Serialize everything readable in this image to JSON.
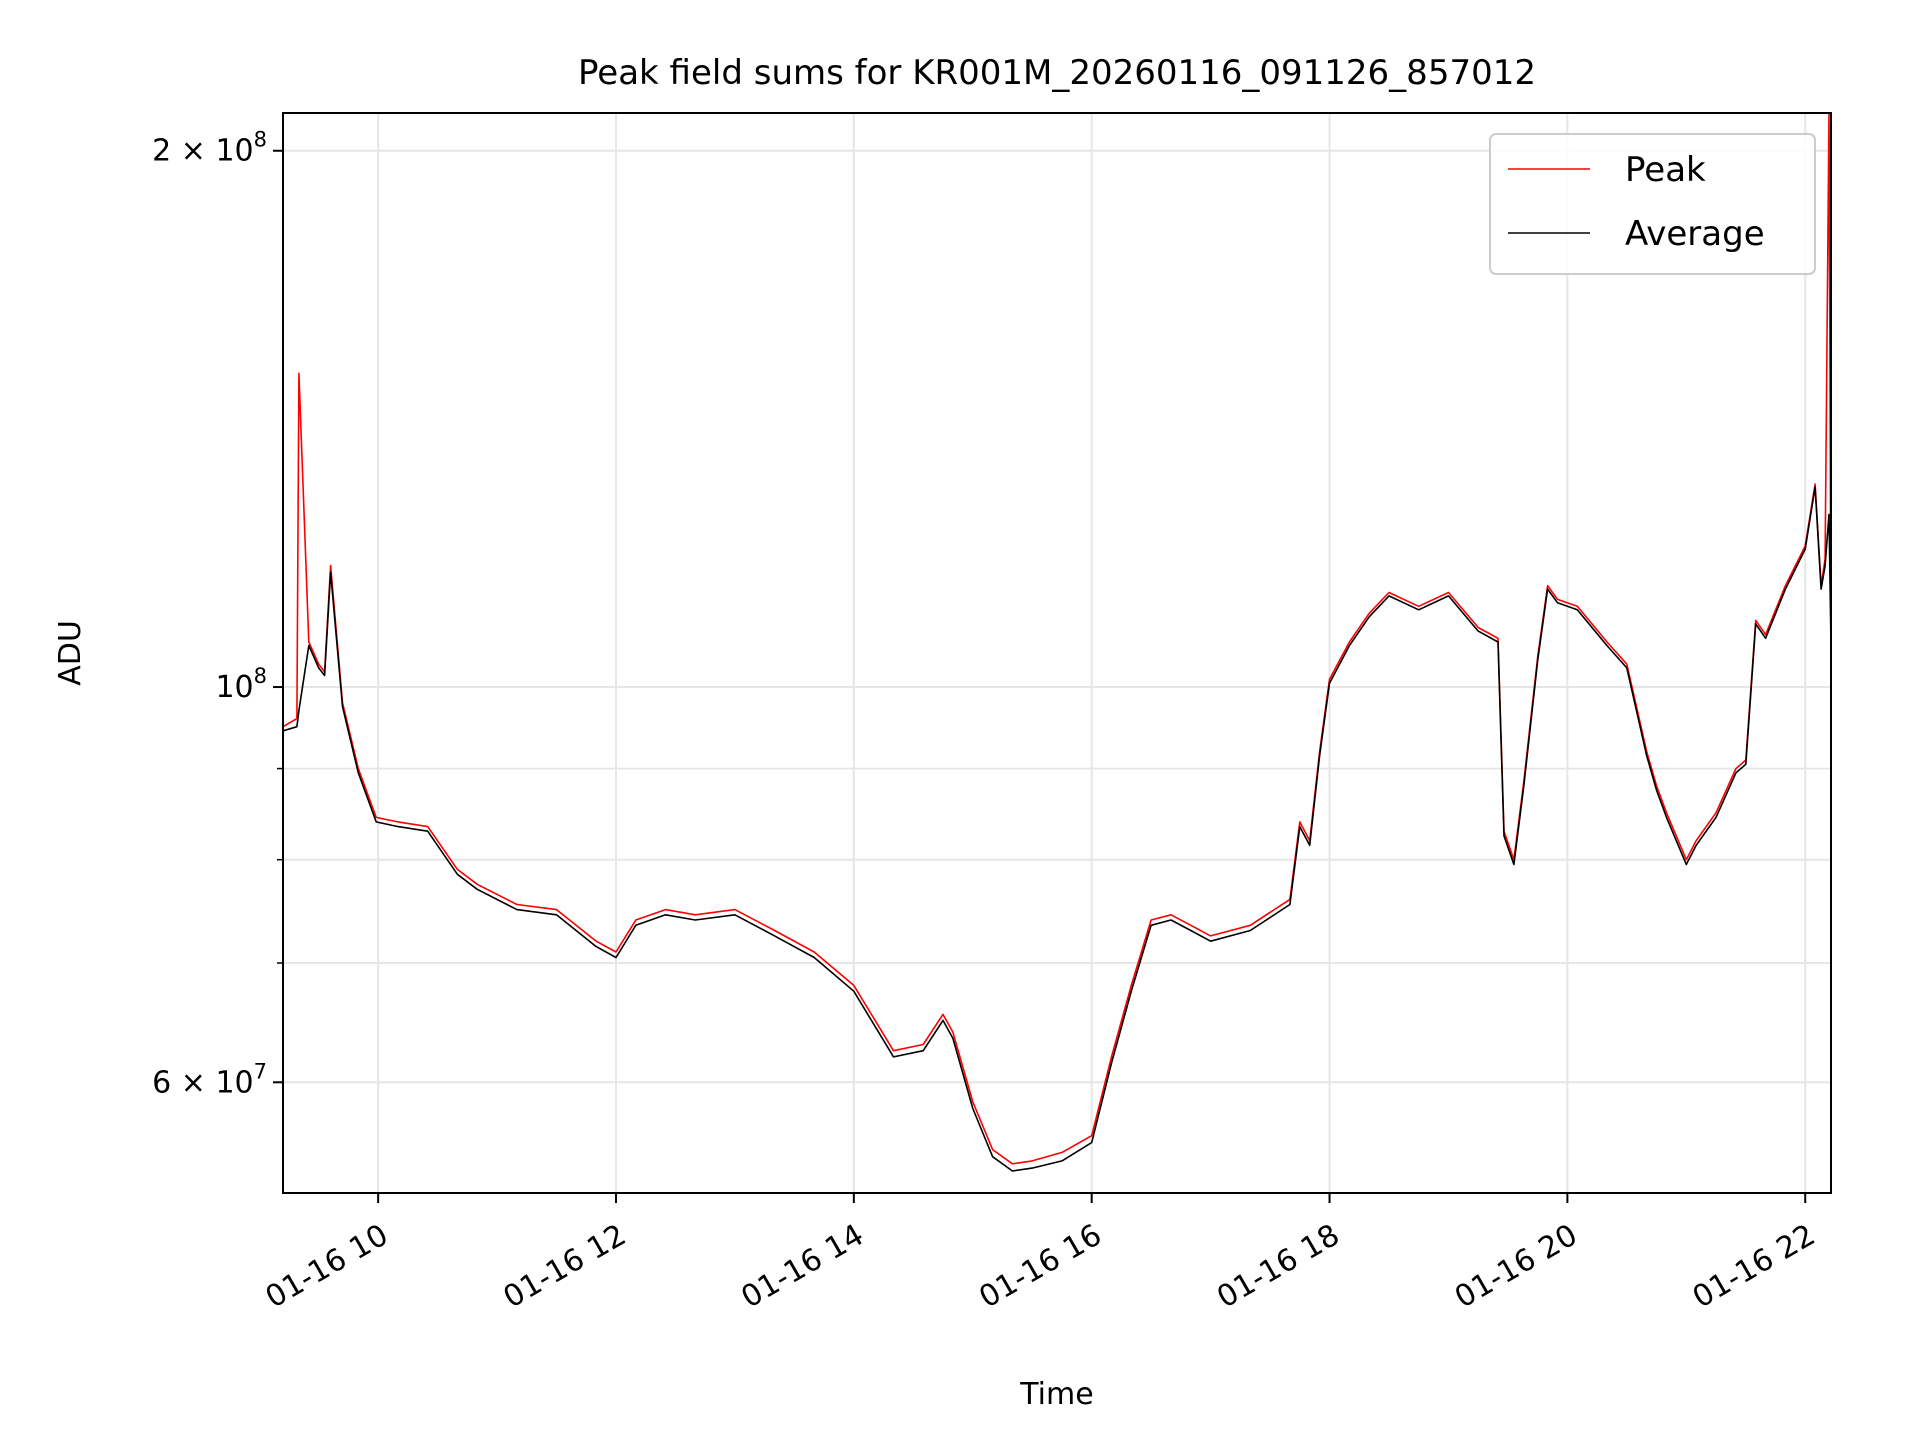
{
  "chart_data": {
    "type": "line",
    "title": "Peak field sums for KR001M_20260116_091126_857012",
    "xlabel": "Time",
    "ylabel": "ADU",
    "yscale": "log",
    "xlim": [
      "2026-01-16 09:12",
      "2026-01-16 22:13"
    ],
    "ylim": [
      52000000,
      210000000
    ],
    "x_ticks": [
      {
        "value": "2026-01-16 10:00",
        "label": "01-16 10"
      },
      {
        "value": "2026-01-16 12:00",
        "label": "01-16 12"
      },
      {
        "value": "2026-01-16 14:00",
        "label": "01-16 14"
      },
      {
        "value": "2026-01-16 16:00",
        "label": "01-16 16"
      },
      {
        "value": "2026-01-16 18:00",
        "label": "01-16 18"
      },
      {
        "value": "2026-01-16 20:00",
        "label": "01-16 20"
      },
      {
        "value": "2026-01-16 22:00",
        "label": "01-16 22"
      }
    ],
    "y_ticks_major": [
      {
        "value": 100000000,
        "base": "10",
        "exp": "8",
        "mult": ""
      },
      {
        "value": 200000000,
        "base": "10",
        "exp": "8",
        "mult": "2"
      },
      {
        "value": 60000000,
        "base": "10",
        "exp": "7",
        "mult": "6"
      }
    ],
    "y_ticks_minor": [
      70000000,
      80000000,
      90000000
    ],
    "grid": true,
    "legend_position": "top-right",
    "colors": {
      "peak": "#ff0000",
      "average": "#000000",
      "grid": "#e6e6e6"
    },
    "x": [
      "2026-01-16 09:12",
      "2026-01-16 09:19",
      "2026-01-16 09:20",
      "2026-01-16 09:25",
      "2026-01-16 09:30",
      "2026-01-16 09:33",
      "2026-01-16 09:36",
      "2026-01-16 09:42",
      "2026-01-16 09:50",
      "2026-01-16 09:59",
      "2026-01-16 10:10",
      "2026-01-16 10:25",
      "2026-01-16 10:40",
      "2026-01-16 10:50",
      "2026-01-16 11:10",
      "2026-01-16 11:30",
      "2026-01-16 11:50",
      "2026-01-16 12:00",
      "2026-01-16 12:10",
      "2026-01-16 12:25",
      "2026-01-16 12:40",
      "2026-01-16 13:00",
      "2026-01-16 13:20",
      "2026-01-16 13:40",
      "2026-01-16 14:00",
      "2026-01-16 14:20",
      "2026-01-16 14:35",
      "2026-01-16 14:45",
      "2026-01-16 14:50",
      "2026-01-16 15:00",
      "2026-01-16 15:10",
      "2026-01-16 15:20",
      "2026-01-16 15:30",
      "2026-01-16 15:45",
      "2026-01-16 16:00",
      "2026-01-16 16:10",
      "2026-01-16 16:20",
      "2026-01-16 16:30",
      "2026-01-16 16:40",
      "2026-01-16 16:50",
      "2026-01-16 17:00",
      "2026-01-16 17:20",
      "2026-01-16 17:40",
      "2026-01-16 17:45",
      "2026-01-16 17:50",
      "2026-01-16 17:55",
      "2026-01-16 18:00",
      "2026-01-16 18:10",
      "2026-01-16 18:20",
      "2026-01-16 18:30",
      "2026-01-16 18:45",
      "2026-01-16 19:00",
      "2026-01-16 19:15",
      "2026-01-16 19:25",
      "2026-01-16 19:28",
      "2026-01-16 19:33",
      "2026-01-16 19:38",
      "2026-01-16 19:45",
      "2026-01-16 19:50",
      "2026-01-16 19:55",
      "2026-01-16 20:05",
      "2026-01-16 20:20",
      "2026-01-16 20:30",
      "2026-01-16 20:40",
      "2026-01-16 20:45",
      "2026-01-16 20:50",
      "2026-01-16 21:00",
      "2026-01-16 21:05",
      "2026-01-16 21:15",
      "2026-01-16 21:25",
      "2026-01-16 21:30",
      "2026-01-16 21:35",
      "2026-01-16 21:40",
      "2026-01-16 21:50",
      "2026-01-16 22:00",
      "2026-01-16 22:05",
      "2026-01-16 22:08",
      "2026-01-16 22:10",
      "2026-01-16 22:12",
      "2026-01-16 22:13"
    ],
    "series": [
      {
        "name": "Peak",
        "color": "#ff0000",
        "values": [
          95000000,
          96000000,
          150000000,
          106000000,
          103000000,
          102000000,
          117000000,
          98000000,
          90000000,
          84500000,
          84000000,
          83500000,
          79000000,
          77500000,
          75500000,
          75000000,
          72000000,
          71000000,
          74000000,
          75000000,
          74500000,
          75000000,
          73000000,
          71000000,
          68000000,
          62500000,
          63000000,
          65500000,
          64000000,
          58500000,
          55000000,
          54000000,
          54200000,
          54800000,
          56000000,
          62000000,
          68000000,
          74000000,
          74500000,
          73500000,
          72500000,
          73500000,
          76000000,
          84000000,
          82000000,
          92000000,
          101000000,
          106000000,
          110000000,
          113000000,
          111000000,
          113000000,
          108000000,
          106500000,
          83000000,
          80000000,
          88500000,
          104000000,
          114000000,
          112000000,
          111000000,
          106000000,
          103000000,
          92000000,
          88000000,
          85000000,
          80000000,
          82000000,
          85000000,
          90000000,
          91000000,
          109000000,
          107000000,
          114000000,
          120000000,
          130000000,
          114000000,
          118000000,
          210000000,
          106000000
        ]
      },
      {
        "name": "Average",
        "color": "#000000",
        "values": [
          94500000,
          95000000,
          97000000,
          105500000,
          102500000,
          101500000,
          116000000,
          97500000,
          89500000,
          84000000,
          83500000,
          83000000,
          78500000,
          77000000,
          75000000,
          74500000,
          71500000,
          70500000,
          73500000,
          74500000,
          74000000,
          74500000,
          72500000,
          70500000,
          67500000,
          62000000,
          62500000,
          65000000,
          63500000,
          58000000,
          54500000,
          53500000,
          53700000,
          54200000,
          55500000,
          61500000,
          67500000,
          73500000,
          74000000,
          73000000,
          72000000,
          73000000,
          75500000,
          83500000,
          81500000,
          91500000,
          100500000,
          105500000,
          109500000,
          112500000,
          110500000,
          112500000,
          107500000,
          106000000,
          82500000,
          79500000,
          88000000,
          103500000,
          113500000,
          111500000,
          110500000,
          105500000,
          102500000,
          91500000,
          87500000,
          84500000,
          79500000,
          81500000,
          84500000,
          89500000,
          90500000,
          108500000,
          106500000,
          113500000,
          119500000,
          129500000,
          113500000,
          117000000,
          125000000,
          105500000
        ]
      }
    ]
  }
}
